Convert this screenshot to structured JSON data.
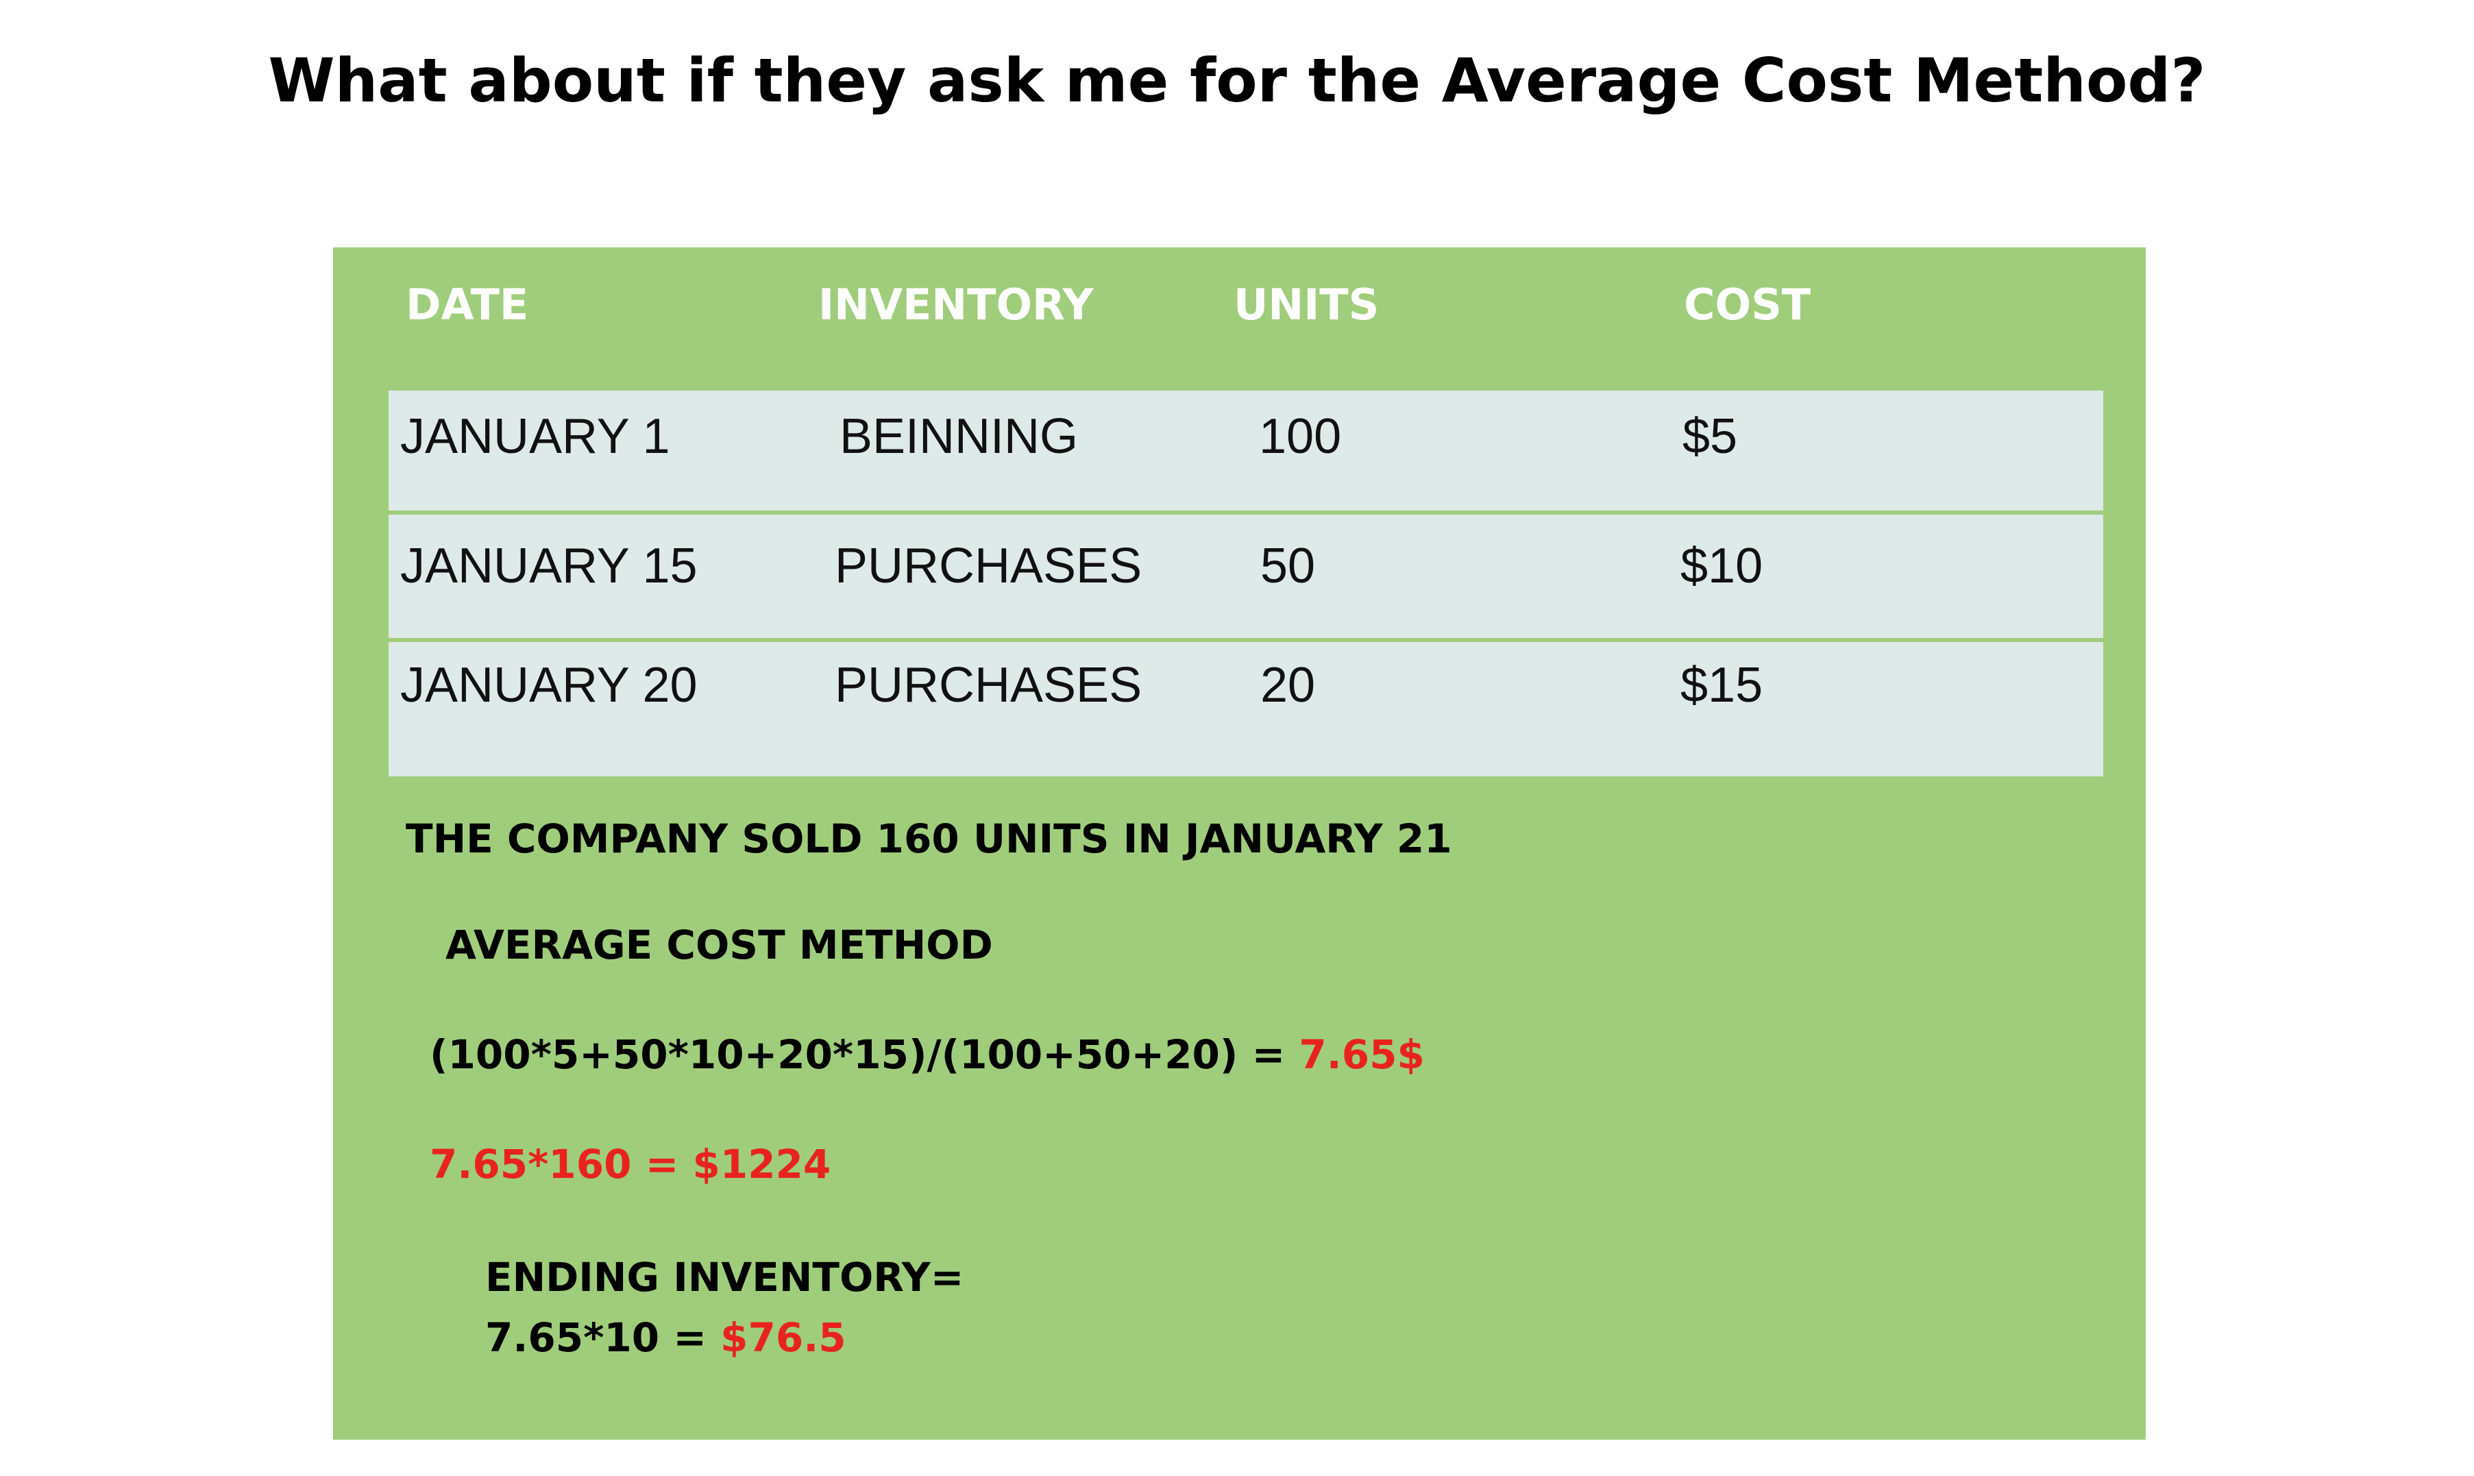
{
  "title": "What about if they ask me for the Average Cost Method?",
  "table": {
    "headers": {
      "date": "DATE",
      "inventory": "INVENTORY",
      "units": "UNITS",
      "cost": "COST"
    },
    "rows": [
      {
        "date": "JANUARY 1",
        "inventory": "BEINNING",
        "units": "100",
        "cost": "$5"
      },
      {
        "date": "JANUARY 15",
        "inventory": "PURCHASES",
        "units": "50",
        "cost": "$10"
      },
      {
        "date": "JANUARY 20",
        "inventory": "PURCHASES",
        "units": "20",
        "cost": "$15"
      }
    ]
  },
  "sold_statement": "THE COMPANY SOLD 160 UNITS IN JANUARY 21",
  "method": {
    "heading": "AVERAGE COST METHOD",
    "formula": "(100*5+50*10+20*15)/(100+50+20) = ",
    "formula_result": "7.65$",
    "cogs_line": "7.65*160 = $1224",
    "ending_label": "ENDING INVENTORY=",
    "ending_formula": "7.65*10 = ",
    "ending_result": "$76.5"
  },
  "colors": {
    "panel_green": "#a0cd7b",
    "row_fill": "#deeae8",
    "header_text": "#ffffff",
    "highlight_red": "#e8231d"
  }
}
